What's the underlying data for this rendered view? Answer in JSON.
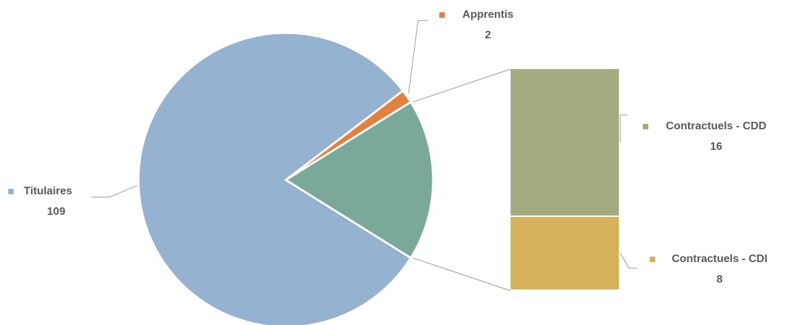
{
  "chart_data": {
    "type": "pie_of_bar",
    "categories": [
      "Titulaires",
      "Apprentis",
      "Contractuels - CDD",
      "Contractuels - CDI"
    ],
    "values": [
      109,
      2,
      16,
      8
    ],
    "colors": [
      "#95b3d1",
      "#e0813f",
      "#a3ab80",
      "#d6b15c"
    ],
    "second_plot_size": 2,
    "other_color": "#7aa89a"
  }
}
